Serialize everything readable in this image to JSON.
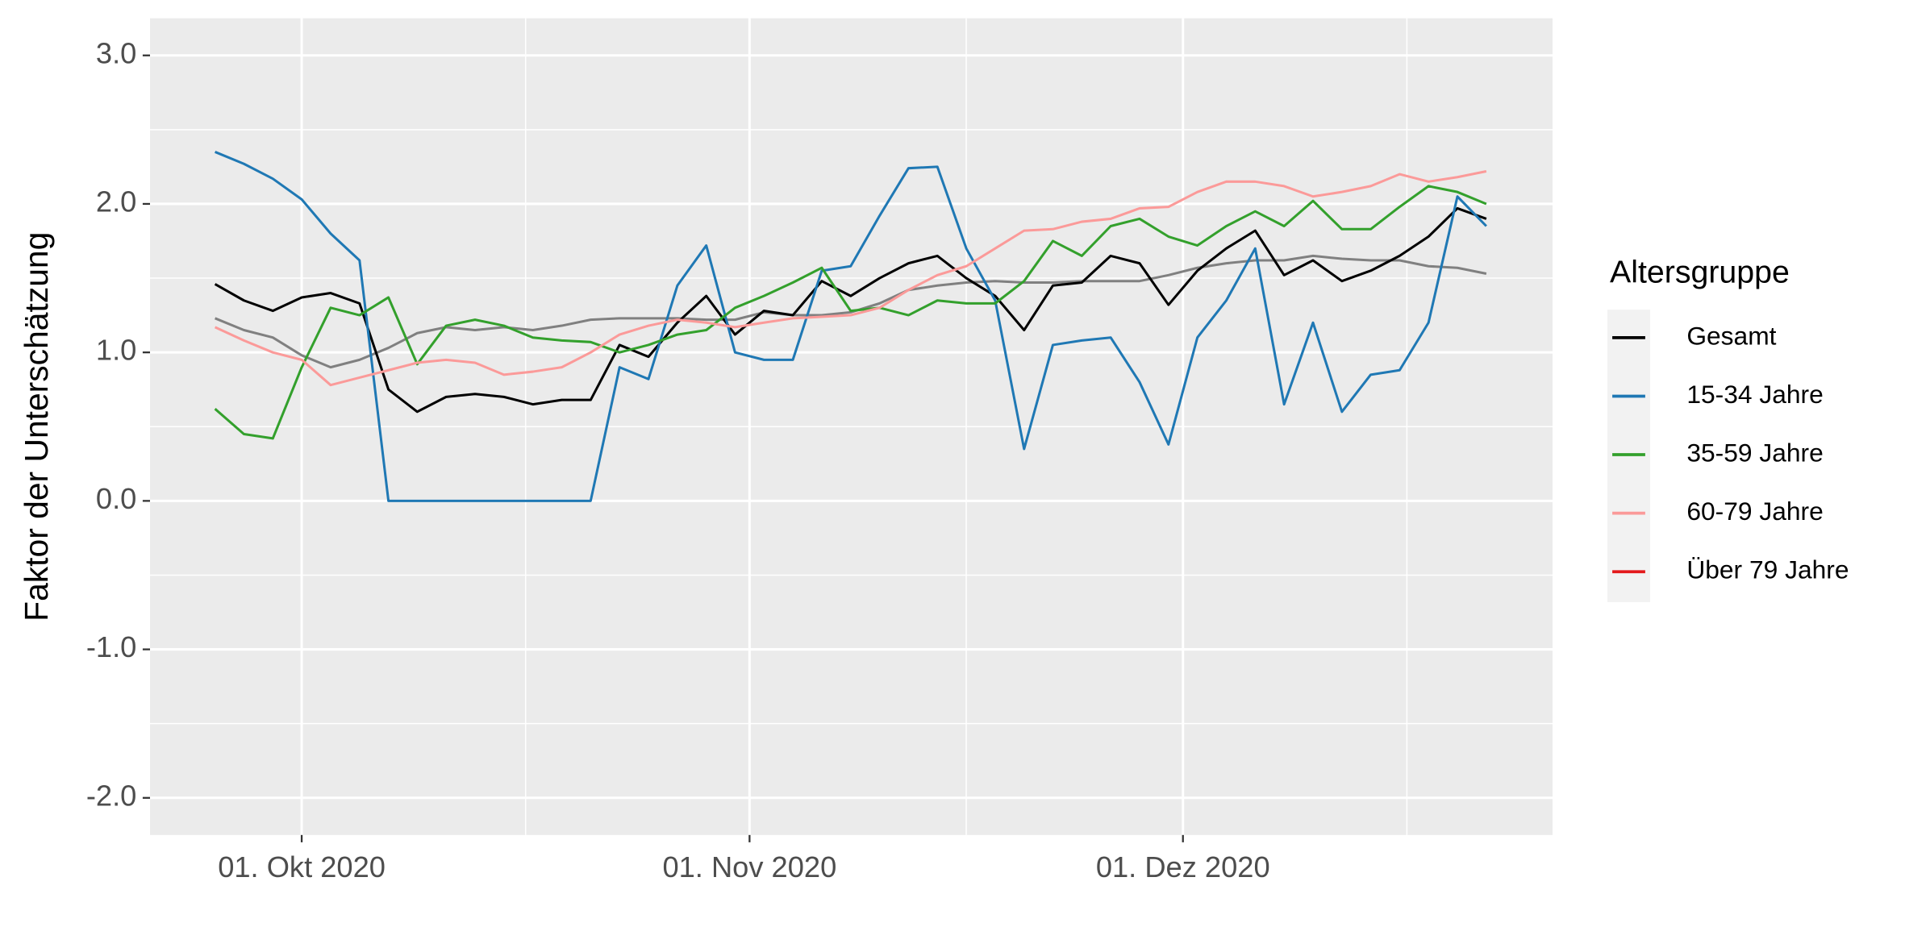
{
  "chart_data": {
    "type": "line",
    "y_label": "Faktor der Unterschätzung",
    "legend_title": "Altersgruppe",
    "legend": "right",
    "grid": true,
    "x": [
      "2020-09-25",
      "2020-09-27",
      "2020-09-29",
      "2020-10-01",
      "2020-10-03",
      "2020-10-05",
      "2020-10-07",
      "2020-10-09",
      "2020-10-11",
      "2020-10-13",
      "2020-10-15",
      "2020-10-17",
      "2020-10-19",
      "2020-10-21",
      "2020-10-23",
      "2020-10-25",
      "2020-10-27",
      "2020-10-29",
      "2020-10-31",
      "2020-11-02",
      "2020-11-04",
      "2020-11-06",
      "2020-11-08",
      "2020-11-10",
      "2020-11-12",
      "2020-11-14",
      "2020-11-16",
      "2020-11-18",
      "2020-11-20",
      "2020-11-22",
      "2020-11-24",
      "2020-11-26",
      "2020-11-28",
      "2020-11-30",
      "2020-12-02",
      "2020-12-04",
      "2020-12-06",
      "2020-12-08",
      "2020-12-10",
      "2020-12-12",
      "2020-12-14",
      "2020-12-16",
      "2020-12-18",
      "2020-12-20",
      "2020-12-22"
    ],
    "xlim": [
      "2020-09-20T12:00:00Z",
      "2020-12-26T14:00:00Z"
    ],
    "xticks": [
      {
        "value": "2020-10-01",
        "label": "01. Okt 2020"
      },
      {
        "value": "2020-11-01",
        "label": "01. Nov 2020"
      },
      {
        "value": "2020-12-01",
        "label": "01. Dez 2020"
      }
    ],
    "xminorticks": [
      "2020-10-16T12:00:00Z",
      "2020-11-16",
      "2020-12-16T12:00:00Z"
    ],
    "ylim": [
      -2.25,
      3.25
    ],
    "yticks": [
      {
        "value": -2,
        "label": "-2.0"
      },
      {
        "value": -1,
        "label": "-1.0"
      },
      {
        "value": 0,
        "label": "0.0"
      },
      {
        "value": 1,
        "label": "1.0"
      },
      {
        "value": 2,
        "label": "2.0"
      },
      {
        "value": 3,
        "label": "3.0"
      }
    ],
    "yminorticks": [
      -1.5,
      -0.5,
      0.5,
      1.5,
      2.5
    ],
    "series": [
      {
        "color": "#808080",
        "values": [
          1.23,
          1.15,
          1.1,
          0.98,
          0.9,
          0.95,
          1.03,
          1.13,
          1.17,
          1.15,
          1.17,
          1.15,
          1.18,
          1.22,
          1.23,
          1.23,
          1.23,
          1.22,
          1.22,
          1.27,
          1.25,
          1.25,
          1.27,
          1.33,
          1.42,
          1.45,
          1.47,
          1.48,
          1.47,
          1.47,
          1.48,
          1.48,
          1.48,
          1.52,
          1.57,
          1.6,
          1.62,
          1.62,
          1.65,
          1.63,
          1.62,
          1.62,
          1.58,
          1.57,
          1.53
        ]
      },
      {
        "name": "Gesamt",
        "color": "#000000",
        "values": [
          1.46,
          1.35,
          1.28,
          1.37,
          1.4,
          1.33,
          0.75,
          0.6,
          0.7,
          0.72,
          0.7,
          0.65,
          0.68,
          0.68,
          1.05,
          0.97,
          1.2,
          1.38,
          1.12,
          1.28,
          1.25,
          1.48,
          1.38,
          1.5,
          1.6,
          1.65,
          1.5,
          1.38,
          1.15,
          1.45,
          1.47,
          1.65,
          1.6,
          1.32,
          1.55,
          1.7,
          1.82,
          1.52,
          1.62,
          1.48,
          1.55,
          1.65,
          1.78,
          1.97,
          1.9
        ]
      },
      {
        "name": "15-34 Jahre",
        "color": "#1f78b4",
        "values": [
          2.35,
          2.27,
          2.17,
          2.03,
          1.8,
          1.62,
          0,
          0,
          0,
          0,
          0,
          0,
          0,
          0,
          0.9,
          0.82,
          1.45,
          1.72,
          1.0,
          0.95,
          0.95,
          1.55,
          1.58,
          1.92,
          2.24,
          2.25,
          1.7,
          1.35,
          0.35,
          1.05,
          1.08,
          1.1,
          0.8,
          0.38,
          1.1,
          1.35,
          1.7,
          0.65,
          1.2,
          0.6,
          0.85,
          0.88,
          1.2,
          2.05,
          1.85
        ]
      },
      {
        "name": "35-59 Jahre",
        "color": "#33a02c",
        "values": [
          0.62,
          0.45,
          0.42,
          0.9,
          1.3,
          1.25,
          1.37,
          0.92,
          1.18,
          1.22,
          1.18,
          1.1,
          1.08,
          1.07,
          1.0,
          1.05,
          1.12,
          1.15,
          1.3,
          1.38,
          1.47,
          1.57,
          1.28,
          1.3,
          1.25,
          1.35,
          1.33,
          1.33,
          1.48,
          1.75,
          1.65,
          1.85,
          1.9,
          1.78,
          1.72,
          1.85,
          1.95,
          1.85,
          2.02,
          1.83,
          1.83,
          1.98,
          2.12,
          2.08,
          2.0
        ]
      },
      {
        "name": "60-79 Jahre",
        "color": "#fb9a99",
        "values": [
          1.17,
          1.08,
          1.0,
          0.95,
          0.78,
          0.83,
          0.88,
          0.93,
          0.95,
          0.93,
          0.85,
          0.87,
          0.9,
          1.0,
          1.12,
          1.18,
          1.22,
          1.2,
          1.17,
          1.2,
          1.23,
          1.24,
          1.25,
          1.3,
          1.42,
          1.52,
          1.58,
          1.7,
          1.82,
          1.83,
          1.88,
          1.9,
          1.97,
          1.98,
          2.08,
          2.15,
          2.15,
          2.12,
          2.05,
          2.08,
          2.12,
          2.2,
          2.15,
          2.18,
          2.22
        ]
      },
      {
        "name": "Über 79 Jahre",
        "color": "#e31a1c",
        "values": [
          null,
          null,
          null,
          null,
          null,
          null,
          null,
          null,
          null,
          null,
          null,
          null,
          null,
          null,
          null,
          null,
          null,
          null,
          null,
          null,
          null,
          null,
          null,
          null,
          null,
          null,
          null,
          null,
          null,
          null,
          null,
          null,
          null,
          null,
          null,
          null,
          null,
          null,
          null,
          null,
          null,
          null,
          null,
          null,
          null
        ]
      }
    ]
  }
}
